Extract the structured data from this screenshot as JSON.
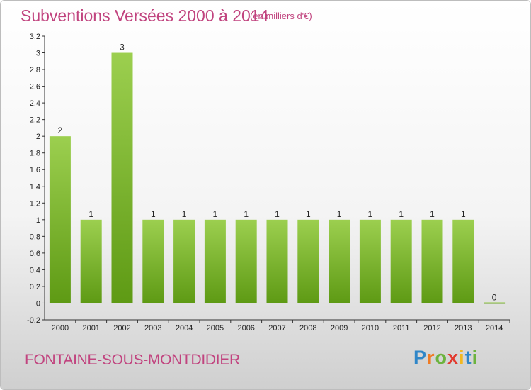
{
  "header": {
    "title": "Subventions Versées 2000 à 2014",
    "subtitle": "(en milliers d'€)"
  },
  "footer": {
    "commune": "FONTAINE-SOUS-MONTDIDIER",
    "logo_letters": [
      "P",
      "r",
      "o",
      "x",
      "i",
      "t",
      "i"
    ]
  },
  "colors": {
    "title": "#c1447f",
    "bar_top": "#9ccf4f",
    "bar_bottom": "#5e9a14"
  },
  "chart_data": {
    "type": "bar",
    "title": "Subventions Versées 2000 à 2014",
    "categories": [
      "2000",
      "2001",
      "2002",
      "2003",
      "2004",
      "2005",
      "2006",
      "2007",
      "2008",
      "2009",
      "2010",
      "2011",
      "2012",
      "2013",
      "2014"
    ],
    "values": [
      2,
      1,
      3,
      1,
      1,
      1,
      1,
      1,
      1,
      1,
      1,
      1,
      1,
      1,
      0
    ],
    "data_labels": [
      "2",
      "1",
      "3",
      "1",
      "1",
      "1",
      "1",
      "1",
      "1",
      "1",
      "1",
      "1",
      "1",
      "1",
      "0"
    ],
    "yticks": [
      -0.2,
      0,
      0.2,
      0.4,
      0.6,
      0.8,
      1,
      1.2,
      1.4,
      1.6,
      1.8,
      2,
      2.2,
      2.4,
      2.6,
      2.8,
      3,
      3.2
    ],
    "ytick_labels": [
      "-0.2",
      "0",
      "0.2",
      "0.4",
      "0.6",
      "0.8",
      "1",
      "1.2",
      "1.4",
      "1.6",
      "1.8",
      "2",
      "2.2",
      "2.4",
      "2.6",
      "2.8",
      "3",
      "3.2"
    ],
    "ylim": [
      -0.2,
      3.2
    ],
    "grid": false,
    "legend": "none"
  }
}
